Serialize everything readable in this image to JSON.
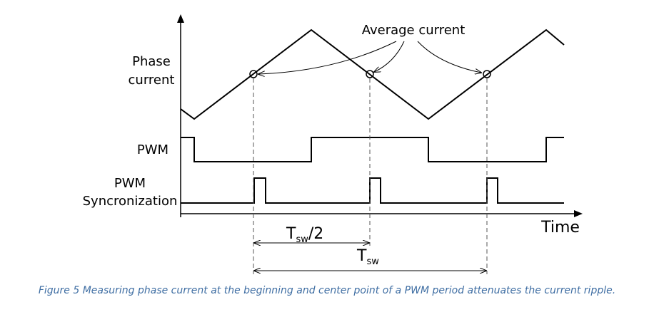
{
  "labels": {
    "phase_current_line1": "Phase",
    "phase_current_line2": "current",
    "pwm": "PWM",
    "pwm_sync_line1": "PWM",
    "pwm_sync_line2": "Syncronization",
    "time_axis": "Time",
    "average_current": "Average current",
    "tsw_half_main": "T",
    "tsw_half_sub": "sw",
    "tsw_half_suffix": "/2",
    "tsw_main": "T",
    "tsw_sub": "sw"
  },
  "caption": "Figure 5 Measuring phase current at the beginning and center point of a PWM period attenuates the current ripple.",
  "colors": {
    "line": "#000000",
    "dashed": "#555555",
    "caption": "#3f6ea3"
  }
}
